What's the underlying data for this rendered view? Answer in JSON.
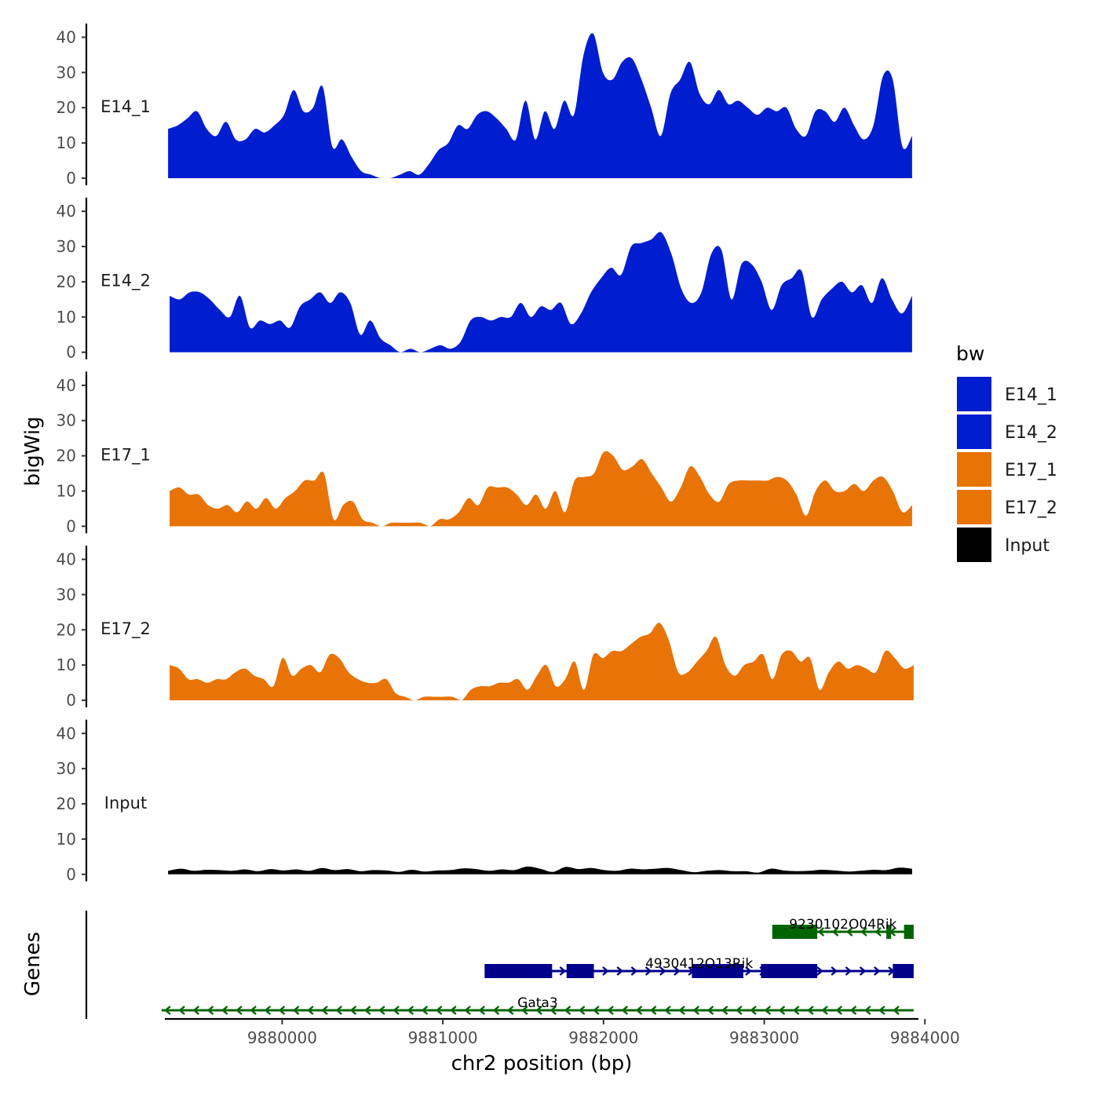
{
  "chart_data": {
    "type": "area",
    "ylabel": "bigWig",
    "xlabel": "chr2 position (bp)",
    "genes_label": "Genes",
    "xlim": [
      9879270,
      9883950
    ],
    "ylim": [
      0,
      43
    ],
    "y_ticks": [
      0,
      10,
      20,
      30,
      40
    ],
    "x_ticks": [
      9880000,
      9881000,
      9882000,
      9883000,
      9884000
    ],
    "x_tick_labels": [
      "9880000",
      "9881000",
      "9882000",
      "9883000",
      "9884000"
    ],
    "legend": {
      "title": "bw",
      "entries": [
        {
          "name": "E14_1",
          "color": "#001ECF"
        },
        {
          "name": "E14_2",
          "color": "#001ECF"
        },
        {
          "name": "E17_1",
          "color": "#E87306"
        },
        {
          "name": "E17_2",
          "color": "#E87306"
        },
        {
          "name": "Input",
          "color": "#000000"
        }
      ]
    },
    "x_grid": [
      9879300,
      9879400,
      9879500,
      9879600,
      9879700,
      9879800,
      9879900,
      9880000,
      9880100,
      9880200,
      9880300,
      9880400,
      9880500,
      9880600,
      9880700,
      9880800,
      9880900,
      9881000,
      9881100,
      9881200,
      9881300,
      9881400,
      9881500,
      9881600,
      9881700,
      9881800,
      9881900,
      9882000,
      9882100,
      9882200,
      9882300,
      9882400,
      9882500,
      9882600,
      9882700,
      9882800,
      9882900,
      9883000,
      9883100,
      9883200,
      9883300,
      9883400,
      9883500,
      9883600,
      9883700,
      9883800,
      9883900
    ],
    "series": [
      {
        "name": "E14_1",
        "color": "#001ECF",
        "x_start": 9879290,
        "x_end": 9883920,
        "values": [
          14,
          15,
          17,
          19,
          14,
          12,
          16,
          11,
          11,
          14,
          13,
          15,
          18,
          25,
          19,
          20,
          26,
          9,
          11,
          6,
          2,
          1,
          0,
          0,
          1,
          2,
          1,
          4,
          8,
          10,
          15,
          14,
          18,
          19,
          17,
          14,
          11,
          22,
          11,
          19,
          14,
          22,
          18,
          35,
          41,
          30,
          28,
          33,
          34,
          28,
          20,
          12,
          24,
          28,
          33,
          24,
          21,
          25,
          21,
          22,
          20,
          18,
          20,
          19,
          20,
          14,
          12,
          19,
          19,
          16,
          20,
          15,
          11,
          15,
          29,
          28,
          9,
          12
        ]
      },
      {
        "name": "E14_2",
        "color": "#001ECF",
        "x_start": 9879300,
        "x_end": 9883920,
        "values": [
          16,
          15,
          17,
          17,
          15,
          12,
          10,
          16,
          7,
          9,
          8,
          9,
          7,
          13,
          15,
          17,
          14,
          17,
          14,
          5,
          9,
          4,
          2,
          0,
          1,
          0,
          1,
          2,
          1,
          3,
          9,
          10,
          9,
          10,
          10,
          14,
          10,
          13,
          12,
          14,
          8,
          11,
          17,
          21,
          24,
          22,
          30,
          31,
          32,
          34,
          28,
          18,
          14,
          17,
          28,
          29,
          15,
          25,
          25,
          20,
          12,
          19,
          21,
          23,
          10,
          15,
          18,
          20,
          17,
          19,
          14,
          21,
          15,
          11,
          16
        ]
      },
      {
        "name": "E17_1",
        "color": "#E87306",
        "x_start": 9879300,
        "x_end": 9883920,
        "values": [
          10,
          11,
          9,
          9,
          6,
          5,
          6,
          4,
          7,
          5,
          8,
          5,
          8,
          10,
          13,
          13,
          15,
          2,
          6,
          7,
          2,
          1,
          0,
          1,
          1,
          1,
          1,
          0,
          2,
          2,
          4,
          8,
          6,
          11,
          11,
          11,
          9,
          6,
          9,
          5,
          10,
          4,
          13,
          14,
          15,
          21,
          20,
          16,
          17,
          19,
          15,
          11,
          7,
          11,
          17,
          14,
          9,
          7,
          12,
          13,
          13,
          13,
          13,
          14,
          13,
          9,
          3,
          10,
          13,
          10,
          10,
          12,
          10,
          13,
          14,
          10,
          4,
          6
        ]
      },
      {
        "name": "E17_2",
        "color": "#E87306",
        "x_start": 9879300,
        "x_end": 9883930,
        "values": [
          10,
          9,
          6,
          6,
          5,
          6,
          6,
          8,
          9,
          7,
          6,
          4,
          12,
          7,
          9,
          10,
          8,
          13,
          12,
          8,
          6,
          5,
          5,
          6,
          2,
          1,
          0,
          1,
          1,
          1,
          1,
          0,
          3,
          4,
          4,
          5,
          5,
          6,
          3,
          7,
          10,
          4,
          6,
          11,
          3,
          13,
          12,
          14,
          14,
          16,
          18,
          19,
          22,
          17,
          8,
          8,
          11,
          14,
          18,
          10,
          7,
          10,
          11,
          13,
          6,
          13,
          14,
          11,
          12,
          3,
          8,
          11,
          9,
          10,
          9,
          8,
          14,
          12,
          9,
          10
        ]
      },
      {
        "name": "Input",
        "color": "#000000",
        "x_start": 9879290,
        "x_end": 9883920,
        "values": [
          1.0,
          1.6,
          1.0,
          1.3,
          1.2,
          1.0,
          1.4,
          0.9,
          1.5,
          1.1,
          1.4,
          1.0,
          1.8,
          1.2,
          1.5,
          0.9,
          1.2,
          1.1,
          0.7,
          1.3,
          0.8,
          1.1,
          1.2,
          1.7,
          1.5,
          1.0,
          1.4,
          1.2,
          2.2,
          1.6,
          0.7,
          2.1,
          1.5,
          1.8,
          1.2,
          1.0,
          1.6,
          1.4,
          1.6,
          1.8,
          1.2,
          0.6,
          1.0,
          1.2,
          0.9,
          0.9,
          0.5,
          1.6,
          1.1,
          0.9,
          1.0,
          1.3,
          1.1,
          0.8,
          1.0,
          1.3,
          1.2,
          1.9,
          1.6
        ]
      }
    ],
    "genes": [
      {
        "name": "9230102O04Rik",
        "strand": "-",
        "color": "#006400",
        "row": 0,
        "start": 9883050,
        "end": 9883930,
        "exons": [
          [
            9883050,
            9883330
          ],
          [
            9883760,
            9883790
          ],
          [
            9883870,
            9883930
          ]
        ]
      },
      {
        "name": "4930412O13Rik",
        "strand": "+",
        "color": "#00008B",
        "row": 1,
        "start": 9881260,
        "end": 9883930,
        "exons": [
          [
            9881260,
            9881680
          ],
          [
            9881770,
            9881940
          ],
          [
            9882550,
            9882870
          ],
          [
            9882980,
            9883330
          ],
          [
            9883800,
            9883930
          ]
        ]
      },
      {
        "name": "Gata3",
        "strand": "-",
        "color": "#006400",
        "row": 2,
        "start": 9879250,
        "end": 9883930,
        "exons": []
      }
    ]
  }
}
